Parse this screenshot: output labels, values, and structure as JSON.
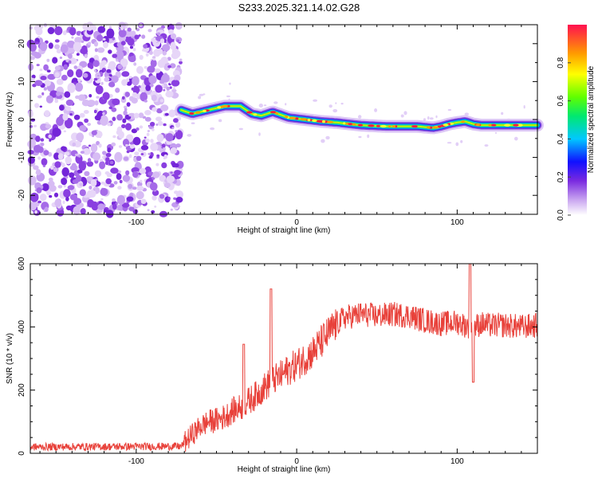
{
  "title": "S233.2025.321.14.02.G28",
  "chart_data": [
    {
      "type": "heatmap",
      "name": "spectrogram",
      "xlabel": "Height of straight line (km)",
      "ylabel": "Frequency (Hz)",
      "xlim": [
        -166,
        150
      ],
      "ylim": [
        -25,
        25
      ],
      "xticks": [
        -100,
        0,
        100
      ],
      "yticks": [
        -20,
        -10,
        0,
        10,
        20
      ],
      "noise_region_x": [
        -166,
        -72
      ],
      "ridge": {
        "x": [
          -72,
          -65,
          -55,
          -45,
          -35,
          -28,
          -22,
          -15,
          -5,
          5,
          15,
          25,
          40,
          55,
          65,
          75,
          80,
          85,
          90,
          95,
          100,
          105,
          110,
          115,
          125,
          135,
          150
        ],
        "freq": [
          2.5,
          1.5,
          2.5,
          3.5,
          3.5,
          1.5,
          1.0,
          2.0,
          0.5,
          0.0,
          -0.5,
          -0.8,
          -1.5,
          -1.8,
          -1.8,
          -1.8,
          -2.0,
          -2.2,
          -1.8,
          -1.2,
          -0.8,
          -0.5,
          -1.2,
          -1.5,
          -1.5,
          -1.5,
          -1.5
        ]
      },
      "colorbar": {
        "label": "Normalized spectral amplitude",
        "range": [
          0,
          1
        ],
        "ticks": [
          "0.0",
          "0.2",
          "0.4",
          "0.6",
          "0.8"
        ],
        "tick_values": [
          0.0,
          0.2,
          0.4,
          0.6,
          0.8
        ]
      }
    },
    {
      "type": "line",
      "name": "snr",
      "xlabel": "Height of straight line (km)",
      "ylabel": "SNR (10 * v/v)",
      "xlim": [
        -166,
        150
      ],
      "ylim": [
        0,
        600
      ],
      "xticks": [
        -100,
        0,
        100
      ],
      "yticks": [
        0,
        200,
        400,
        600
      ],
      "color": "#e8413a",
      "series": [
        {
          "name": "SNR",
          "x": [
            -166,
            -72,
            -65,
            -60,
            -55,
            -50,
            -45,
            -40,
            -35,
            -30,
            -25,
            -20,
            -15,
            -10,
            -5,
            0,
            5,
            10,
            15,
            20,
            25,
            30,
            40,
            50,
            60,
            70,
            80,
            90,
            100,
            105,
            110,
            115,
            120,
            130,
            140,
            150
          ],
          "y": [
            20,
            22,
            60,
            85,
            100,
            105,
            115,
            135,
            145,
            165,
            185,
            210,
            230,
            245,
            265,
            280,
            300,
            320,
            350,
            380,
            410,
            430,
            440,
            435,
            440,
            435,
            420,
            410,
            415,
            405,
            400,
            410,
            405,
            405,
            400,
            405
          ]
        }
      ],
      "spikes": [
        {
          "x": -33,
          "y": 345
        },
        {
          "x": -16,
          "y": 520
        },
        {
          "x": 108,
          "y": 600
        },
        {
          "x": 110,
          "y": 225
        }
      ]
    }
  ]
}
